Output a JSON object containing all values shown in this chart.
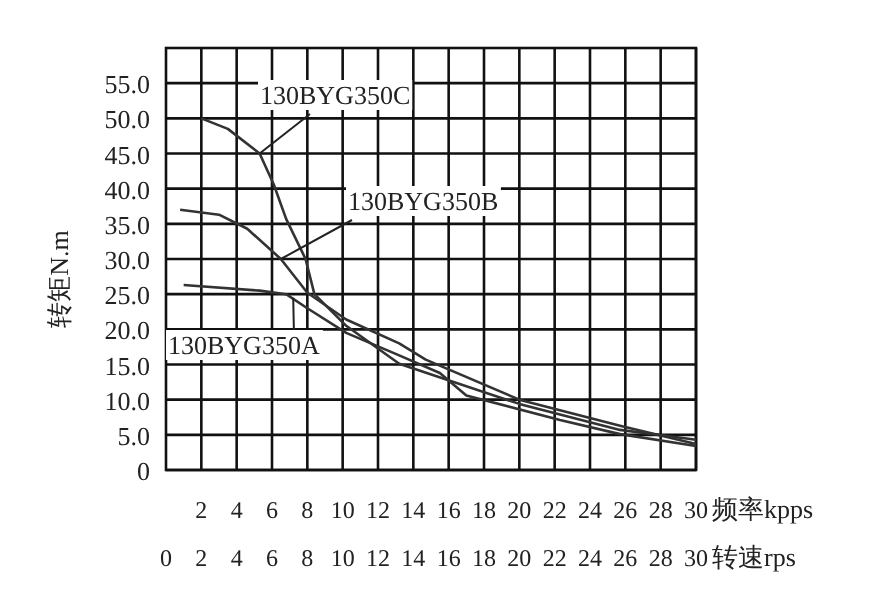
{
  "chart_data": {
    "type": "line",
    "ylabel": "转矩N.m",
    "xlabel": "频率kpps",
    "x2label": "转速rps",
    "xlim": [
      0,
      30
    ],
    "xticks": [
      2,
      4,
      6,
      8,
      10,
      12,
      14,
      16,
      18,
      20,
      22,
      24,
      26,
      28,
      30
    ],
    "x2lim": [
      0,
      30
    ],
    "x2ticks": [
      0,
      2,
      4,
      6,
      8,
      10,
      12,
      14,
      16,
      18,
      20,
      22,
      24,
      26,
      28,
      30
    ],
    "ylim": [
      0,
      60
    ],
    "yticks": [
      0,
      {
        "value": 5,
        "label": "5.0"
      },
      {
        "value": 10,
        "label": "10.0"
      },
      {
        "value": 15,
        "label": "15.0"
      },
      {
        "value": 20,
        "label": "20.0"
      },
      {
        "value": 25,
        "label": "25.0"
      },
      {
        "value": 30,
        "label": "30.0"
      },
      {
        "value": 35,
        "label": "35.0"
      },
      {
        "value": 40,
        "label": "40.0"
      },
      {
        "value": 45,
        "label": "45.0"
      },
      {
        "value": 50,
        "label": "50.0"
      },
      {
        "value": 55,
        "label": "55.0"
      }
    ],
    "grid": true,
    "marker": "none",
    "line_style": "solid",
    "series": [
      {
        "color": "#333333",
        "x": [
          2,
          3.5,
          5.3,
          6.1,
          6.8,
          7.9,
          8.4,
          10.2,
          13.2,
          20,
          25.7,
          30
        ],
        "values": [
          50,
          48.5,
          45,
          40.6,
          35.7,
          30,
          25,
          20.5,
          15.1,
          9.4,
          5.7,
          4.3
        ]
      },
      {
        "color": "#333333",
        "x": [
          0.8,
          3,
          4.6,
          6.5,
          8,
          10.2,
          13.2,
          14.7,
          20,
          25.7,
          30
        ],
        "values": [
          37,
          36.3,
          34.3,
          30,
          25.2,
          21.4,
          18,
          15.7,
          10,
          6.3,
          3.7
        ]
      },
      {
        "color": "#333333",
        "x": [
          1,
          5.3,
          6.8,
          8,
          10.2,
          13.2,
          15.5,
          17,
          22.3,
          25.7,
          30
        ],
        "values": [
          26.3,
          25.5,
          25,
          23,
          19.5,
          16.3,
          13.8,
          10.6,
          7.1,
          5.1,
          3.4
        ]
      }
    ],
    "annotations": [
      {
        "text": "130BYG350C",
        "x": 5.3,
        "y": 45
      },
      {
        "text": "130BYG350B",
        "x": 6.5,
        "y": 30
      },
      {
        "text": "130BYG350A",
        "x": 7.2,
        "y": 24.5
      }
    ]
  }
}
